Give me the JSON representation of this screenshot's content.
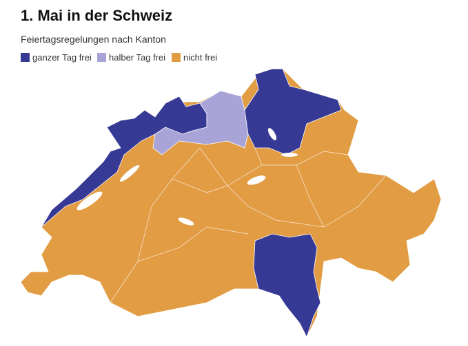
{
  "title": "1. Mai in der Schweiz",
  "subtitle": "Feiertagsregelungen nach Kanton",
  "legend": [
    {
      "label": "ganzer Tag frei",
      "color": "#373a95"
    },
    {
      "label": "halber Tag frei",
      "color": "#a9a4d8"
    },
    {
      "label": "nicht frei",
      "color": "#e29c43"
    }
  ]
}
